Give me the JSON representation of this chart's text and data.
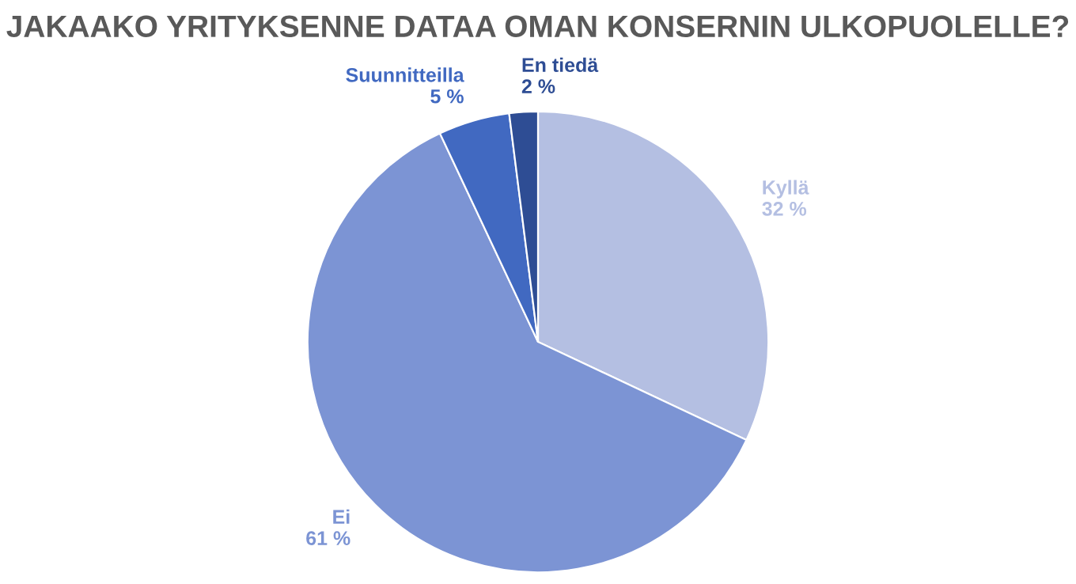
{
  "chart_data": {
    "type": "pie",
    "title": "JAKAAKO YRITYKSENNE DATAA OMAN KONSERNIN ULKOPUOLELLE?",
    "categories": [
      "Kyllä",
      "Ei",
      "Suunnitteilla",
      "En tiedä"
    ],
    "values": [
      32,
      61,
      5,
      2
    ],
    "value_labels": [
      "32 %",
      "61 %",
      "5 %",
      "2 %"
    ],
    "colors": [
      "#b4bfe2",
      "#7c94d4",
      "#4169c1",
      "#2e4d94"
    ],
    "legend": false
  }
}
